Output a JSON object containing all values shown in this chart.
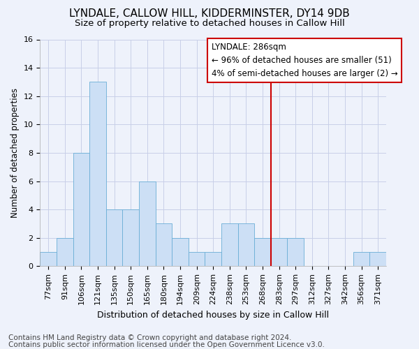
{
  "title": "LYNDALE, CALLOW HILL, KIDDERMINSTER, DY14 9DB",
  "subtitle": "Size of property relative to detached houses in Callow Hill",
  "xlabel": "Distribution of detached houses by size in Callow Hill",
  "ylabel": "Number of detached properties",
  "categories": [
    "77sqm",
    "91sqm",
    "106sqm",
    "121sqm",
    "135sqm",
    "150sqm",
    "165sqm",
    "180sqm",
    "194sqm",
    "209sqm",
    "224sqm",
    "238sqm",
    "253sqm",
    "268sqm",
    "283sqm",
    "297sqm",
    "312sqm",
    "327sqm",
    "342sqm",
    "356sqm",
    "371sqm"
  ],
  "values": [
    1,
    2,
    8,
    13,
    4,
    4,
    6,
    3,
    2,
    1,
    1,
    3,
    3,
    2,
    2,
    2,
    0,
    0,
    0,
    1,
    1
  ],
  "bar_color": "#ccdff5",
  "bar_edge_color": "#6aaed6",
  "red_line_index": 14,
  "highlight_line_color": "#cc0000",
  "ylim": [
    0,
    16
  ],
  "yticks": [
    0,
    2,
    4,
    6,
    8,
    10,
    12,
    14,
    16
  ],
  "annotation_title": "LYNDALE: 286sqm",
  "annotation_line1": "← 96% of detached houses are smaller (51)",
  "annotation_line2": "4% of semi-detached houses are larger (2) →",
  "footer1": "Contains HM Land Registry data © Crown copyright and database right 2024.",
  "footer2": "Contains public sector information licensed under the Open Government Licence v3.0.",
  "background_color": "#eef2fb",
  "grid_color": "#c8cfe8",
  "title_fontsize": 11,
  "subtitle_fontsize": 9.5,
  "xlabel_fontsize": 9,
  "ylabel_fontsize": 8.5,
  "tick_fontsize": 8,
  "annotation_fontsize": 8.5,
  "footer_fontsize": 7.5
}
